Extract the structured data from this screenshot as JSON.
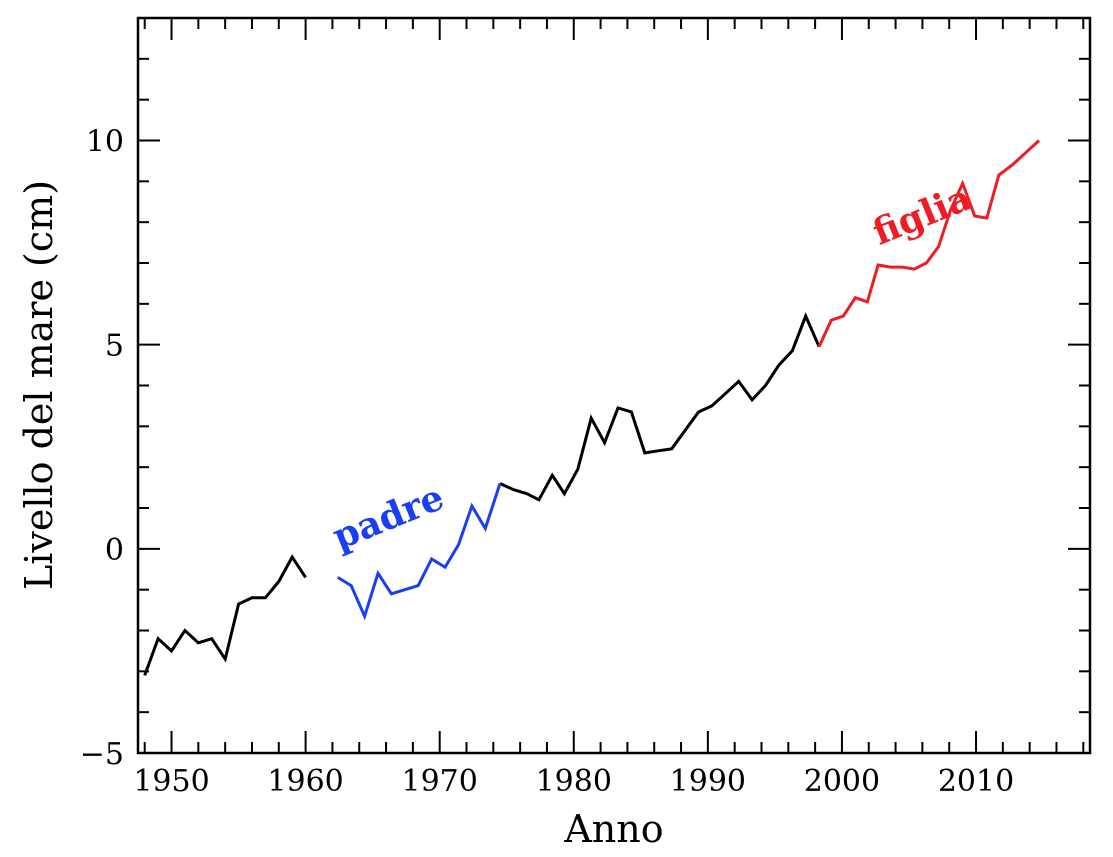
{
  "chart_data": {
    "type": "line",
    "title": "",
    "xlabel": "Anno",
    "ylabel": "Livello del mare (cm)",
    "xlim": [
      1947.5,
      2018.5
    ],
    "ylim": [
      -5,
      13
    ],
    "xticks": [
      1950,
      1960,
      1970,
      1980,
      1990,
      2000,
      2010
    ],
    "xtick_labels": [
      "1950",
      "1960",
      "1970",
      "1980",
      "1990",
      "2000",
      "2010"
    ],
    "yticks": [
      -5,
      0,
      5,
      10
    ],
    "ytick_labels": [
      "−5",
      "0",
      "5",
      "10"
    ],
    "grid": false,
    "series": [
      {
        "color": "#000000",
        "x": [
          1948,
          1949,
          1950,
          1951,
          1952,
          1953,
          1954,
          1955,
          1956,
          1957,
          1958,
          1959,
          1960,
          1961,
          1962
        ],
        "y": [
          -3.1,
          -2.2,
          -2.5,
          -2.0,
          -2.3,
          -2.2,
          -2.7,
          -1.35,
          -1.2,
          -1.2,
          -0.8,
          -0.2,
          -0.7,
          null,
          null
        ]
      },
      {
        "color": "#000000",
        "x": [
          1974.5,
          1975.5,
          1976.5,
          1977.4,
          1978.4,
          1979.3,
          1980.3,
          1981.3,
          1982.3,
          1983.3,
          1984.3,
          1985.3,
          1986.3,
          1987.3,
          1988.3,
          1989.3,
          1990.3,
          1991.3,
          1992.3,
          1993.3,
          1994.3,
          1995.3,
          1996.3,
          1997.3,
          1998.3
        ],
        "y": [
          1.6,
          1.45,
          1.35,
          1.2,
          1.8,
          1.35,
          1.95,
          3.2,
          2.6,
          3.45,
          3.35,
          2.35,
          2.4,
          2.45,
          2.9,
          3.35,
          3.5,
          3.8,
          4.1,
          3.65,
          4.0,
          4.5,
          4.85,
          5.7,
          4.95
        ]
      },
      {
        "name": "padre",
        "color": "#1a3ff0",
        "x": [
          1962.4,
          1963.4,
          1964.4,
          1965.4,
          1966.4,
          1967.4,
          1968.4,
          1969.4,
          1970.4,
          1971.4,
          1972.4,
          1973.4,
          1974.5
        ],
        "y": [
          -0.7,
          -0.9,
          -1.65,
          -0.6,
          -1.1,
          -1.0,
          -0.9,
          -0.25,
          -0.45,
          0.1,
          1.05,
          0.5,
          1.6
        ]
      },
      {
        "name": "figlia",
        "color": "#ee1c25",
        "x": [
          1998.3,
          1999.2,
          2000.1,
          2001.0,
          2001.9,
          2002.7,
          2003.6,
          2004.5,
          2005.4,
          2006.3,
          2007.2,
          2008.1,
          2009.0,
          2009.9,
          2010.8,
          2011.7,
          2012.7,
          2013.7,
          2014.7
        ],
        "y": [
          4.95,
          5.6,
          5.7,
          6.15,
          6.05,
          6.95,
          6.9,
          6.9,
          6.85,
          7.0,
          7.4,
          8.3,
          8.95,
          8.15,
          8.1,
          9.15,
          9.4,
          9.7,
          10.0
        ]
      }
    ],
    "annotations": [
      {
        "text": "padre",
        "x": 1966.5,
        "y": 0.5,
        "color": "#1a3ff0"
      },
      {
        "text": "figlia",
        "x": 2006.3,
        "y": 7.9,
        "color": "#ee1c25"
      }
    ]
  }
}
